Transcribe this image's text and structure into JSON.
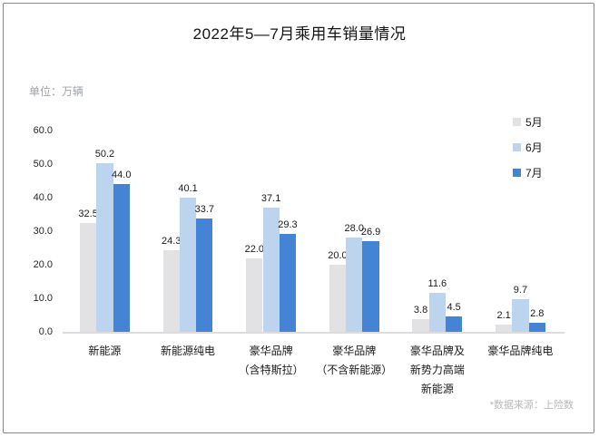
{
  "title": "2022年5—7月乘用车销量情况",
  "unit_label": "单位：万辆",
  "footnote": "*数据来源：上险数",
  "colors": {
    "may_bar": "#E2E2E4",
    "jun_bar": "#BDD4EF",
    "jul_bar": "#4583D4",
    "baseline": "#DCDCDC",
    "border": "#8A8A8A",
    "muted_text": "#9FA3A8"
  },
  "legend": [
    {
      "label": "5月",
      "color": "#E2E2E4"
    },
    {
      "label": "6月",
      "color": "#BDD4EF"
    },
    {
      "label": "7月",
      "color": "#4583D4"
    }
  ],
  "chart_data": {
    "type": "bar",
    "title": "2022年5—7月乘用车销量情况",
    "unit": "万辆",
    "categories": [
      "新能源",
      "新能源纯电",
      "豪华品牌（含特斯拉）",
      "豪华品牌（不含新能源）",
      "豪华品牌及新势力高端新能源",
      "豪华品牌纯电"
    ],
    "category_lines": [
      [
        "新能源"
      ],
      [
        "新能源纯电"
      ],
      [
        "豪华品牌",
        "（含特斯拉）"
      ],
      [
        "豪华品牌",
        "（不含新能源）"
      ],
      [
        "豪华品牌及",
        "新势力高端",
        "新能源"
      ],
      [
        "豪华品牌纯电"
      ]
    ],
    "series": [
      {
        "name": "5月",
        "values": [
          32.5,
          24.3,
          22.0,
          20.0,
          3.8,
          2.1
        ]
      },
      {
        "name": "6月",
        "values": [
          50.2,
          40.1,
          37.1,
          28.0,
          11.6,
          9.7
        ]
      },
      {
        "name": "7月",
        "values": [
          44.0,
          33.7,
          29.3,
          26.9,
          4.5,
          2.8
        ]
      }
    ],
    "ylim": [
      0,
      60
    ],
    "yticks": [
      "0.0",
      "10.0",
      "20.0",
      "30.0",
      "40.0",
      "50.0",
      "60.0"
    ],
    "grid": false,
    "legend_position": "right",
    "data_labels": true
  }
}
